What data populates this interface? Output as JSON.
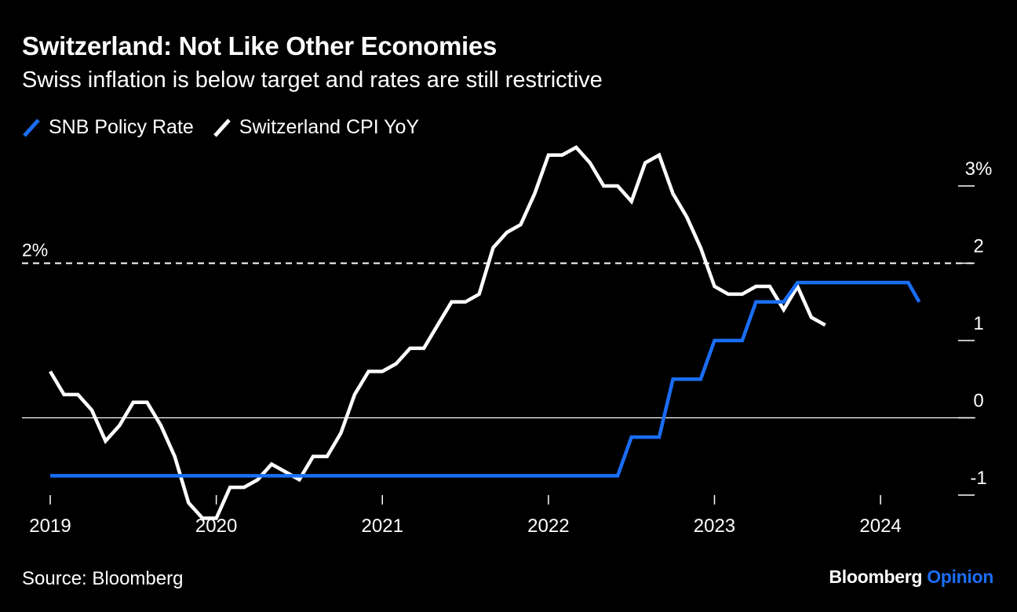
{
  "header": {
    "title": "Switzerland: Not Like Other Economies",
    "subtitle": "Swiss inflation is below target and rates are still restrictive"
  },
  "legend": [
    {
      "label": "SNB Policy Rate",
      "color": "#1a6ef5"
    },
    {
      "label": "Switzerland CPI YoY",
      "color": "#ffffff"
    }
  ],
  "footer": {
    "source": "Source: Bloomberg",
    "brand_main": "Bloomberg",
    "brand_accent": "Opinion"
  },
  "colors": {
    "background": "#000000",
    "policy": "#1a6ef5",
    "cpi": "#ffffff",
    "target": "#ffffff",
    "zero": "#ffffff"
  },
  "chart_data": {
    "type": "line",
    "title": "Switzerland: Not Like Other Economies",
    "subtitle": "Swiss inflation is below target and rates are still restrictive",
    "ylim": [
      -1,
      3
    ],
    "xlim": [
      2019.0,
      2024.25
    ],
    "y_ticks": [
      {
        "value": 3,
        "label": "3%"
      },
      {
        "value": 2,
        "label": "2"
      },
      {
        "value": 1,
        "label": "1"
      },
      {
        "value": 0,
        "label": "0"
      },
      {
        "value": -1,
        "label": "-1"
      }
    ],
    "x_ticks": [
      {
        "value": 2019,
        "label": "2019"
      },
      {
        "value": 2020,
        "label": "2020"
      },
      {
        "value": 2021,
        "label": "2021"
      },
      {
        "value": 2022,
        "label": "2022"
      },
      {
        "value": 2023,
        "label": "2023"
      },
      {
        "value": 2024,
        "label": "2024"
      }
    ],
    "reference_lines": [
      {
        "name": "inflation-target",
        "value": 2,
        "label": "2%",
        "style": "dashed"
      },
      {
        "name": "zero-line",
        "value": 0,
        "label": "",
        "style": "solid"
      }
    ],
    "series": [
      {
        "name": "SNB Policy Rate",
        "color": "#1a6ef5",
        "points": [
          [
            2019.0,
            -0.75
          ],
          [
            2022.417,
            -0.75
          ],
          [
            2022.5,
            -0.25
          ],
          [
            2022.667,
            -0.25
          ],
          [
            2022.75,
            0.5
          ],
          [
            2022.917,
            0.5
          ],
          [
            2023.0,
            1.0
          ],
          [
            2023.167,
            1.0
          ],
          [
            2023.25,
            1.5
          ],
          [
            2023.417,
            1.5
          ],
          [
            2023.5,
            1.75
          ],
          [
            2024.167,
            1.75
          ],
          [
            2024.233,
            1.5
          ]
        ]
      },
      {
        "name": "Switzerland CPI YoY",
        "color": "#ffffff",
        "points": [
          [
            2019.0,
            0.6
          ],
          [
            2019.083,
            0.3
          ],
          [
            2019.167,
            0.3
          ],
          [
            2019.25,
            0.1
          ],
          [
            2019.333,
            -0.3
          ],
          [
            2019.417,
            -0.1
          ],
          [
            2019.5,
            0.2
          ],
          [
            2019.583,
            0.2
          ],
          [
            2019.667,
            -0.1
          ],
          [
            2019.75,
            -0.5
          ],
          [
            2019.833,
            -1.1
          ],
          [
            2019.917,
            -1.3
          ],
          [
            2020.0,
            -1.3
          ],
          [
            2020.083,
            -0.9
          ],
          [
            2020.167,
            -0.9
          ],
          [
            2020.25,
            -0.8
          ],
          [
            2020.333,
            -0.6
          ],
          [
            2020.417,
            -0.7
          ],
          [
            2020.5,
            -0.8
          ],
          [
            2020.583,
            -0.5
          ],
          [
            2020.667,
            -0.5
          ],
          [
            2020.75,
            -0.2
          ],
          [
            2020.833,
            0.3
          ],
          [
            2020.917,
            0.6
          ],
          [
            2021.0,
            0.6
          ],
          [
            2021.083,
            0.7
          ],
          [
            2021.167,
            0.9
          ],
          [
            2021.25,
            0.9
          ],
          [
            2021.333,
            1.2
          ],
          [
            2021.417,
            1.5
          ],
          [
            2021.5,
            1.5
          ],
          [
            2021.583,
            1.6
          ],
          [
            2021.667,
            2.2
          ],
          [
            2021.75,
            2.4
          ],
          [
            2021.833,
            2.5
          ],
          [
            2021.917,
            2.9
          ],
          [
            2022.0,
            3.4
          ],
          [
            2022.083,
            3.4
          ],
          [
            2022.167,
            3.5
          ],
          [
            2022.25,
            3.3
          ],
          [
            2022.333,
            3.0
          ],
          [
            2022.417,
            3.0
          ],
          [
            2022.5,
            2.8
          ],
          [
            2022.583,
            3.3
          ],
          [
            2022.667,
            3.4
          ],
          [
            2022.75,
            2.9
          ],
          [
            2022.833,
            2.6
          ],
          [
            2022.917,
            2.2
          ],
          [
            2023.0,
            1.7
          ],
          [
            2023.083,
            1.6
          ],
          [
            2023.167,
            1.6
          ],
          [
            2023.25,
            1.7
          ],
          [
            2023.333,
            1.7
          ],
          [
            2023.417,
            1.4
          ],
          [
            2023.5,
            1.7
          ],
          [
            2023.583,
            1.3
          ],
          [
            2023.667,
            1.2
          ]
        ]
      }
    ]
  }
}
